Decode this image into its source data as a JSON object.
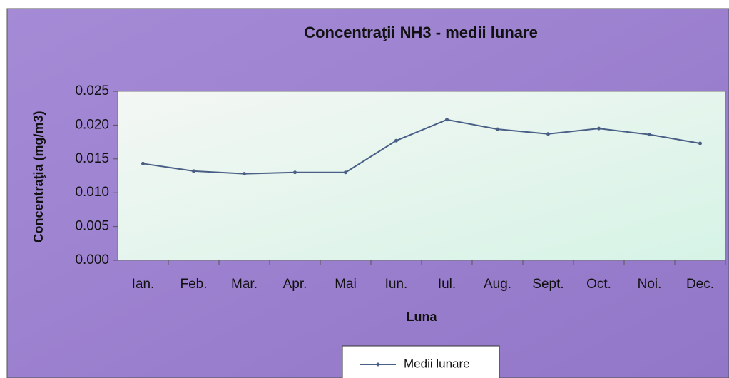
{
  "chart_data": {
    "type": "line",
    "title": "Concentraţii NH3 - medii lunare",
    "x_label": "Luna",
    "y_label": "Concentraţia (mg/m3)",
    "categories": [
      "Ian.",
      "Feb.",
      "Mar.",
      "Apr.",
      "Mai",
      "Iun.",
      "Iul.",
      "Aug.",
      "Sept.",
      "Oct.",
      "Noi.",
      "Dec."
    ],
    "series": [
      {
        "name": "Medii lunare",
        "color": "#4a5f86",
        "values": [
          0.0143,
          0.0132,
          0.0128,
          0.013,
          0.013,
          0.0177,
          0.0208,
          0.0194,
          0.0187,
          0.0195,
          0.0186,
          0.0173
        ]
      }
    ],
    "ylim": [
      0,
      0.025
    ],
    "yticks": [
      {
        "value": 0,
        "label": "0.000"
      },
      0.005,
      {
        "value": 0.01,
        "label": "0.010"
      },
      0.015,
      {
        "value": 0.02,
        "label": "0.020"
      },
      0.025
    ],
    "grid": false,
    "legend": "bottom"
  }
}
